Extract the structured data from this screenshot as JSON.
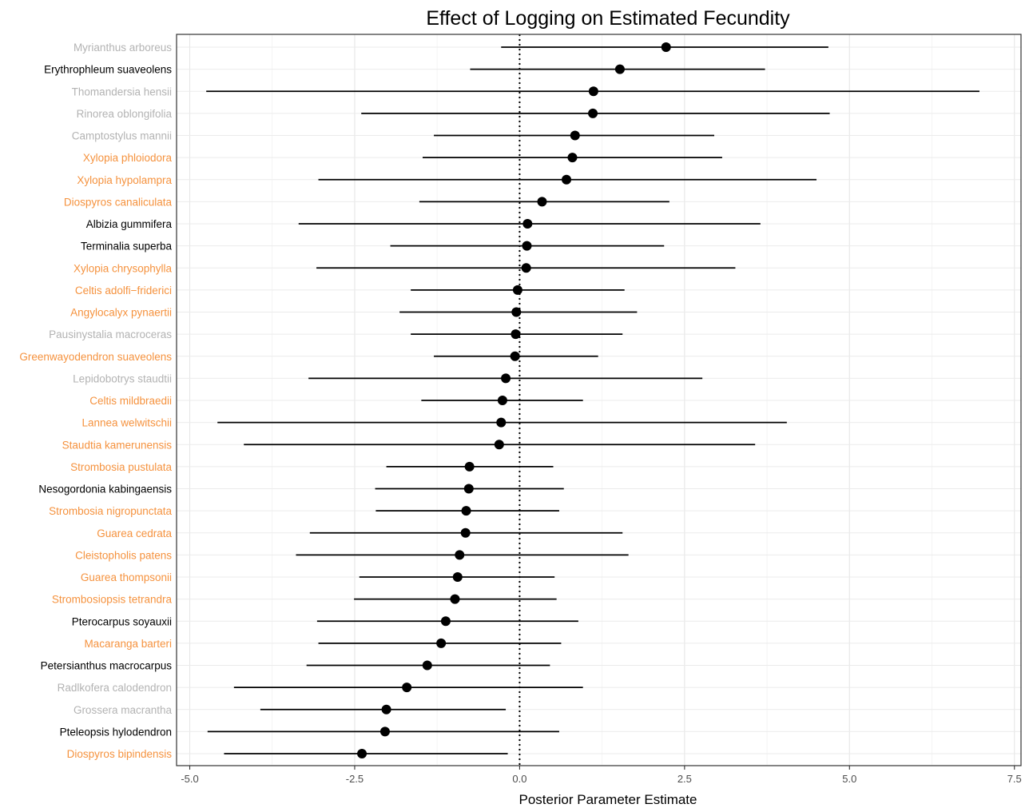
{
  "chart_data": {
    "type": "scatter",
    "title": "Effect of Logging on Estimated Fecundity",
    "xlabel": "Posterior Parameter Estimate",
    "ylabel": "",
    "xlim": [
      -5.2,
      7.6
    ],
    "xticks": [
      -5.0,
      -2.5,
      0.0,
      2.5,
      5.0,
      7.5
    ],
    "xtick_labels": [
      "-5.0",
      "-2.5",
      "0.0",
      "2.5",
      "5.0",
      "7.5"
    ],
    "grid": true,
    "reference_line": 0,
    "colors": {
      "gray": "#b3b3b3",
      "black": "#000000",
      "orange": "#f5923e"
    },
    "series": [
      {
        "name": "Myrianthus arboreus",
        "color": "gray",
        "estimate": 2.22,
        "lower": -0.28,
        "upper": 4.68
      },
      {
        "name": "Erythrophleum suaveolens",
        "color": "black",
        "estimate": 1.52,
        "lower": -0.75,
        "upper": 3.72
      },
      {
        "name": "Thomandersia hensii",
        "color": "gray",
        "estimate": 1.12,
        "lower": -4.75,
        "upper": 6.97
      },
      {
        "name": "Rinorea oblongifolia",
        "color": "gray",
        "estimate": 1.11,
        "lower": -2.4,
        "upper": 4.7
      },
      {
        "name": "Camptostylus mannii",
        "color": "gray",
        "estimate": 0.84,
        "lower": -1.3,
        "upper": 2.95
      },
      {
        "name": "Xylopia phloiodora",
        "color": "orange",
        "estimate": 0.8,
        "lower": -1.47,
        "upper": 3.07
      },
      {
        "name": "Xylopia hypolampra",
        "color": "orange",
        "estimate": 0.71,
        "lower": -3.05,
        "upper": 4.5
      },
      {
        "name": "Diospyros canaliculata",
        "color": "orange",
        "estimate": 0.34,
        "lower": -1.52,
        "upper": 2.27
      },
      {
        "name": "Albizia gummifera",
        "color": "black",
        "estimate": 0.12,
        "lower": -3.35,
        "upper": 3.65
      },
      {
        "name": "Terminalia superba",
        "color": "black",
        "estimate": 0.11,
        "lower": -1.96,
        "upper": 2.19
      },
      {
        "name": "Xylopia chrysophylla",
        "color": "orange",
        "estimate": 0.1,
        "lower": -3.08,
        "upper": 3.27
      },
      {
        "name": "Celtis adolfi−friderici",
        "color": "orange",
        "estimate": -0.03,
        "lower": -1.65,
        "upper": 1.59
      },
      {
        "name": "Angylocalyx pynaertii",
        "color": "orange",
        "estimate": -0.05,
        "lower": -1.82,
        "upper": 1.78
      },
      {
        "name": "Pausinystalia macroceras",
        "color": "gray",
        "estimate": -0.06,
        "lower": -1.65,
        "upper": 1.56
      },
      {
        "name": "Greenwayodendron suaveolens",
        "color": "orange",
        "estimate": -0.07,
        "lower": -1.3,
        "upper": 1.19
      },
      {
        "name": "Lepidobotrys staudtii",
        "color": "gray",
        "estimate": -0.21,
        "lower": -3.2,
        "upper": 2.77
      },
      {
        "name": "Celtis mildbraedii",
        "color": "orange",
        "estimate": -0.26,
        "lower": -1.49,
        "upper": 0.96
      },
      {
        "name": "Lannea welwitschii",
        "color": "orange",
        "estimate": -0.28,
        "lower": -4.58,
        "upper": 4.05
      },
      {
        "name": "Staudtia kamerunensis",
        "color": "orange",
        "estimate": -0.31,
        "lower": -4.18,
        "upper": 3.57
      },
      {
        "name": "Strombosia pustulata",
        "color": "orange",
        "estimate": -0.76,
        "lower": -2.02,
        "upper": 0.51
      },
      {
        "name": "Nesogordonia kabingaensis",
        "color": "black",
        "estimate": -0.77,
        "lower": -2.19,
        "upper": 0.67
      },
      {
        "name": "Strombosia nigropunctata",
        "color": "orange",
        "estimate": -0.81,
        "lower": -2.18,
        "upper": 0.6
      },
      {
        "name": "Guarea cedrata",
        "color": "orange",
        "estimate": -0.82,
        "lower": -3.18,
        "upper": 1.56
      },
      {
        "name": "Cleistopholis patens",
        "color": "orange",
        "estimate": -0.91,
        "lower": -3.39,
        "upper": 1.65
      },
      {
        "name": "Guarea thompsonii",
        "color": "orange",
        "estimate": -0.94,
        "lower": -2.43,
        "upper": 0.53
      },
      {
        "name": "Strombosiopsis tetrandra",
        "color": "orange",
        "estimate": -0.98,
        "lower": -2.51,
        "upper": 0.56
      },
      {
        "name": "Pterocarpus soyauxii",
        "color": "black",
        "estimate": -1.12,
        "lower": -3.07,
        "upper": 0.89
      },
      {
        "name": "Macaranga barteri",
        "color": "orange",
        "estimate": -1.19,
        "lower": -3.05,
        "upper": 0.63
      },
      {
        "name": "Petersianthus macrocarpus",
        "color": "black",
        "estimate": -1.4,
        "lower": -3.23,
        "upper": 0.46
      },
      {
        "name": "Radlkofera calodendron",
        "color": "gray",
        "estimate": -1.71,
        "lower": -4.33,
        "upper": 0.96
      },
      {
        "name": "Grossera macrantha",
        "color": "gray",
        "estimate": -2.02,
        "lower": -3.93,
        "upper": -0.21
      },
      {
        "name": "Pteleopsis hylodendron",
        "color": "black",
        "estimate": -2.04,
        "lower": -4.73,
        "upper": 0.6
      },
      {
        "name": "Diospyros bipindensis",
        "color": "orange",
        "estimate": -2.39,
        "lower": -4.48,
        "upper": -0.18
      }
    ]
  }
}
